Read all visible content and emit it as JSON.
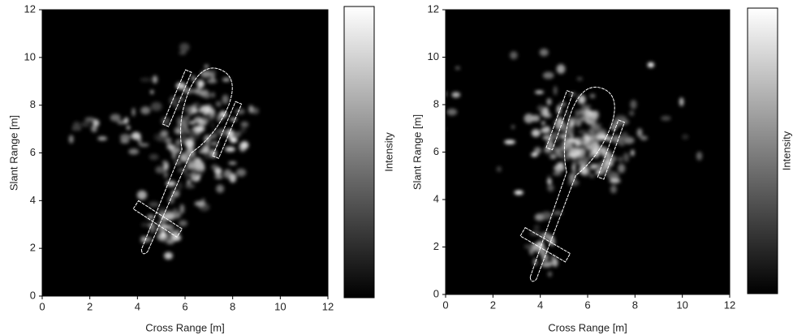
{
  "chart_data": [
    {
      "type": "image",
      "xlabel": "Cross Range [m]",
      "ylabel": "Slant Range [m]",
      "colorbar_label": "Intensity",
      "colormap": "gray",
      "xlim": [
        0,
        12
      ],
      "ylim": [
        0,
        12
      ],
      "xticks": [
        0,
        2,
        4,
        6,
        8,
        10,
        12
      ],
      "yticks": [
        0,
        2,
        4,
        6,
        8,
        10,
        12
      ]
    },
    {
      "type": "image",
      "xlabel": "Cross Range [m]",
      "ylabel": "Slant Range [m]",
      "colorbar_label": "Intensity",
      "colormap": "gray",
      "xlim": [
        0,
        12
      ],
      "ylim": [
        0,
        12
      ],
      "xticks": [
        0,
        2,
        4,
        6,
        8,
        10,
        12
      ],
      "yticks": [
        0,
        2,
        4,
        6,
        8,
        10,
        12
      ]
    }
  ]
}
